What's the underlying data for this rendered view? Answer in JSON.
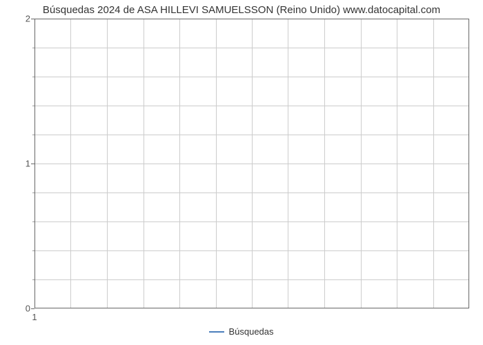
{
  "chart": {
    "type": "line",
    "title": "Búsquedas 2024 de ASA HILLEVI SAMUELSSON (Reino Unido) www.datocapital.com",
    "title_fontsize": 15,
    "title_color": "#333333",
    "background_color": "#ffffff",
    "grid_color": "#cccccc",
    "border_color": "#666666",
    "tick_font_color": "#555555",
    "tick_fontsize": 13,
    "x": {
      "ticks": [
        1
      ],
      "range": [
        1,
        12
      ],
      "vgrid_positions_pct": [
        0,
        8.33,
        16.67,
        25,
        33.33,
        41.67,
        50,
        58.33,
        66.67,
        75,
        83.33,
        91.67
      ]
    },
    "y": {
      "major_ticks": [
        0,
        1,
        2
      ],
      "range": [
        0,
        2
      ],
      "hgrid_positions_pct": [
        0,
        10,
        20,
        30,
        40,
        50,
        60,
        70,
        80,
        90,
        100
      ],
      "major_positions_pct": [
        100,
        50,
        0
      ],
      "minor_positions_pct": [
        90,
        80,
        70,
        60,
        40,
        30,
        20,
        10
      ]
    },
    "series": [
      {
        "name": "Búsquedas",
        "color": "#4a7ebb",
        "line_width": 2.5,
        "values": []
      }
    ],
    "legend": {
      "position": "bottom-center",
      "items": [
        {
          "label": "Búsquedas",
          "color": "#4a7ebb"
        }
      ]
    }
  }
}
